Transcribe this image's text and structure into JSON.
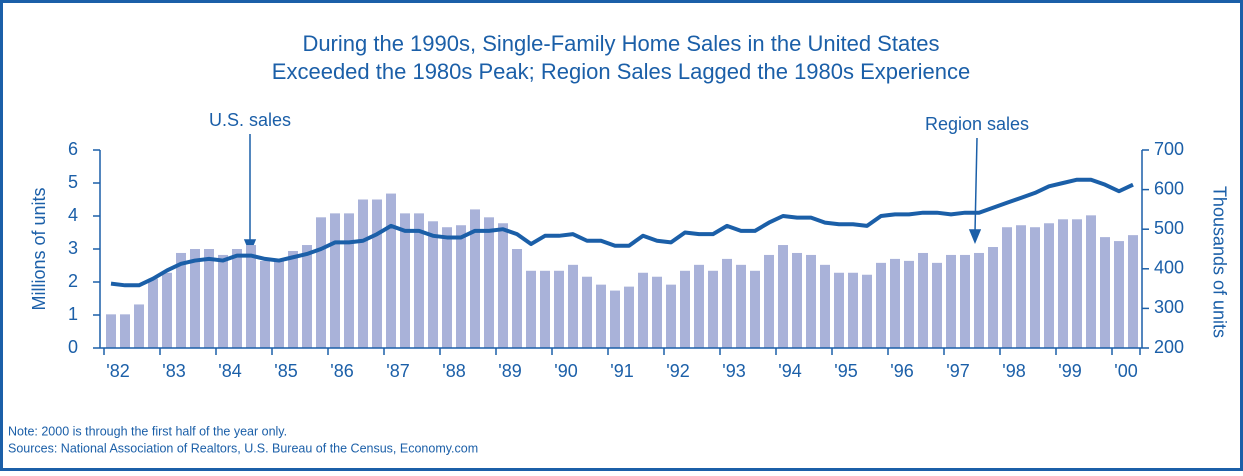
{
  "chart_data": {
    "type": "bar_line",
    "title": [
      "During the 1990s, Single-Family Home Sales in the United States",
      "Exceeded the 1980s Peak; Region Sales Lagged the 1980s Experience"
    ],
    "ylabel": "Millions of units",
    "y2label": "Thousands of units",
    "categories": [
      "'82",
      null,
      null,
      null,
      "'83",
      null,
      null,
      null,
      "'84",
      null,
      null,
      null,
      "'85",
      null,
      null,
      null,
      "'86",
      null,
      null,
      null,
      "'87",
      null,
      null,
      null,
      "'88",
      null,
      null,
      null,
      "'89",
      null,
      null,
      null,
      "'90",
      null,
      null,
      null,
      "'91",
      null,
      null,
      null,
      "'92",
      null,
      null,
      null,
      "'93",
      null,
      null,
      null,
      "'94",
      null,
      null,
      null,
      "'95",
      null,
      null,
      null,
      "'96",
      null,
      null,
      null,
      "'97",
      null,
      null,
      null,
      "'98",
      null,
      null,
      null,
      "'99",
      null,
      null,
      null,
      "'00",
      null
    ],
    "ylim": [
      0,
      6
    ],
    "yticks": [
      0,
      1,
      2,
      3,
      4,
      5,
      6
    ],
    "y2lim": [
      200,
      700
    ],
    "y2ticks": [
      200,
      300,
      400,
      500,
      600,
      700
    ],
    "series": [
      {
        "name": "Region sales",
        "type": "bar",
        "axis": "y2",
        "color": "#a9b2d9",
        "values": [
          285,
          285,
          310,
          375,
          390,
          440,
          450,
          450,
          435,
          450,
          460,
          420,
          425,
          445,
          460,
          530,
          540,
          540,
          575,
          575,
          590,
          540,
          540,
          520,
          505,
          510,
          550,
          530,
          515,
          450,
          395,
          395,
          395,
          410,
          380,
          360,
          345,
          355,
          390,
          380,
          360,
          395,
          410,
          395,
          425,
          410,
          395,
          435,
          460,
          440,
          435,
          410,
          390,
          390,
          385,
          415,
          425,
          420,
          440,
          415,
          435,
          435,
          440,
          455,
          505,
          510,
          505,
          515,
          525,
          525,
          535,
          480,
          470,
          485
        ]
      },
      {
        "name": "U.S. sales",
        "type": "line",
        "axis": "y",
        "color": "#1b5fa8",
        "values": [
          1.95,
          1.9,
          1.9,
          2.1,
          2.35,
          2.55,
          2.65,
          2.7,
          2.65,
          2.8,
          2.8,
          2.7,
          2.65,
          2.75,
          2.85,
          3.0,
          3.2,
          3.2,
          3.25,
          3.45,
          3.7,
          3.55,
          3.55,
          3.4,
          3.35,
          3.35,
          3.55,
          3.55,
          3.6,
          3.45,
          3.15,
          3.4,
          3.4,
          3.45,
          3.25,
          3.25,
          3.1,
          3.1,
          3.4,
          3.25,
          3.2,
          3.5,
          3.45,
          3.45,
          3.7,
          3.55,
          3.55,
          3.8,
          4.0,
          3.95,
          3.95,
          3.8,
          3.75,
          3.75,
          3.7,
          4.0,
          4.05,
          4.05,
          4.1,
          4.1,
          4.05,
          4.1,
          4.1,
          4.25,
          4.4,
          4.55,
          4.7,
          4.9,
          5.0,
          5.1,
          5.1,
          4.95,
          4.75,
          4.95
        ]
      }
    ],
    "notes": [
      "Note: 2000 is through the first half of the year only.",
      "Sources: National Association of Realtors, U.S. Bureau of the Census, Economy.com"
    ]
  }
}
